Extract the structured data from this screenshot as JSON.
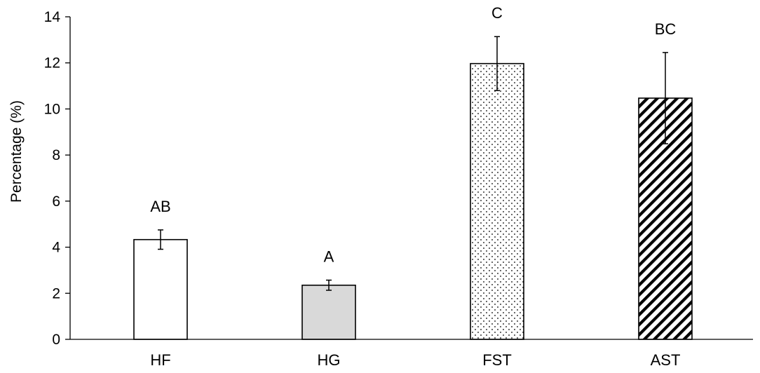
{
  "chart_data": {
    "type": "bar",
    "categories": [
      "HF",
      "HG",
      "FST",
      "AST"
    ],
    "values": [
      4.33,
      2.35,
      11.97,
      10.47
    ],
    "errors": [
      0.42,
      0.22,
      1.17,
      1.98
    ],
    "significance_letters": [
      "AB",
      "A",
      "C",
      "BC"
    ],
    "bar_fills": [
      "white",
      "light-gray",
      "dotted",
      "diagonal-hatch"
    ],
    "title": "",
    "xlabel": "",
    "ylabel": "Percentage (%)",
    "ylim": [
      0,
      14
    ],
    "yticks": [
      "0",
      "2",
      "4",
      "6",
      "8",
      "10",
      "12",
      "14"
    ],
    "grid": false,
    "legend": "none",
    "colors": {
      "axis": "#000000",
      "bar_edge": "#000000",
      "light_gray": "#d9d9d9",
      "white": "#ffffff"
    }
  }
}
